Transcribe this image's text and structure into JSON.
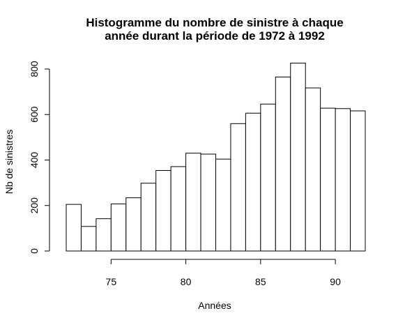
{
  "chart_data": {
    "type": "bar",
    "title_line1": "Histogramme du nombre de sinistre à chaque",
    "title_line2": "année durant la période de 1972 à 1992",
    "xlabel": "Années",
    "ylabel": "Nb de sinistres",
    "bin_edges": [
      72,
      73,
      74,
      75,
      76,
      77,
      78,
      79,
      80,
      81,
      82,
      83,
      84,
      85,
      86,
      87,
      88,
      89,
      90,
      91,
      92
    ],
    "values": [
      205,
      108,
      142,
      207,
      234,
      298,
      354,
      371,
      430,
      426,
      404,
      560,
      606,
      646,
      765,
      826,
      717,
      628,
      626,
      616
    ],
    "xlim": [
      72,
      92
    ],
    "ylim": [
      0,
      800
    ],
    "x_ticks": [
      75,
      80,
      85,
      90
    ],
    "y_ticks": [
      0,
      200,
      400,
      600,
      800
    ],
    "grid": false,
    "legend": false,
    "colors": {
      "bar_fill": "#ffffff",
      "bar_stroke": "#000000"
    }
  }
}
